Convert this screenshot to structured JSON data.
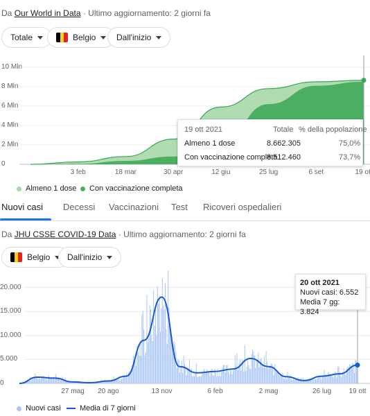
{
  "vaccines": {
    "source_prefix": "Da",
    "source_link": "Our World in Data",
    "updated": "· Ultimo aggiornamento: 2 giorni fa",
    "filters": {
      "metric": "Totale",
      "country": "Belgio",
      "range": "Dall'inizio"
    },
    "flag_colors": [
      "#000000",
      "#f7d117",
      "#e2231a"
    ],
    "colors": {
      "first_dose": "#a8d8a8",
      "full": "#4cae62"
    },
    "tooltip": {
      "date": "19 ott 2021",
      "col_total": "Totale",
      "col_pct": "% della popolazione",
      "rows": [
        {
          "label": "Almeno 1 dose",
          "total": "8.662.305",
          "pct": "75,0%"
        },
        {
          "label": "Con vaccinazione completa",
          "total": "8.512.460",
          "pct": "73,7%"
        }
      ]
    },
    "legend": [
      "Almeno 1 dose",
      "Con vaccinazione completa"
    ],
    "chart_data": {
      "type": "area",
      "ylim": [
        0,
        10000000
      ],
      "y_ticks": [
        "10 Mln",
        "8 Mln",
        "6 Mln",
        "4 Mln",
        "2 Mln",
        "0"
      ],
      "x_ticks": [
        "3 feb",
        "18 mar",
        "30 apr",
        "12 giu",
        "25 lug",
        "6 set",
        "19 ott"
      ],
      "x": [
        "28 dic",
        "3 feb",
        "18 mar",
        "30 apr",
        "12 giu",
        "25 lug",
        "6 set",
        "19 ott"
      ],
      "series": [
        {
          "name": "Almeno 1 dose",
          "values": [
            0,
            250000,
            800000,
            2600000,
            5900000,
            7800000,
            8500000,
            8662305
          ]
        },
        {
          "name": "Con vaccinazione completa",
          "values": [
            0,
            50000,
            350000,
            800000,
            2300000,
            6200000,
            8100000,
            8512460
          ]
        }
      ]
    }
  },
  "tabs": [
    "Nuovi casi",
    "Decessi",
    "Vaccinazioni",
    "Test",
    "Ricoveri ospedalieri"
  ],
  "cases": {
    "source_prefix": "Da",
    "source_link": "JHU CSSE COVID-19 Data",
    "updated": "· Ultimo aggiornamento: 2 giorni fa",
    "filters": {
      "country": "Belgio",
      "range": "Dall'inizio"
    },
    "colors": {
      "bars": "#a9c6f5",
      "avg": "#1558d6"
    },
    "tooltip": {
      "date": "20 ott 2021",
      "new": "Nuovi casi: 6.552",
      "avg": "Media 7 gg: 3.824"
    },
    "legend": [
      "Nuovi casi",
      "Media di 7 giorni"
    ],
    "chart_data": {
      "type": "line",
      "ylim": [
        0,
        25000
      ],
      "y_ticks": [
        "20.000",
        "15.000",
        "10.000",
        "5.000",
        "0"
      ],
      "x_ticks": [
        "27 mag",
        "20 ago",
        "13 nov",
        "6 feb",
        "2 mag",
        "26 lug",
        "19 ott"
      ],
      "x": [
        "1 mar 2020",
        "1 apr 2020",
        "1 mag 2020",
        "27 mag 2020",
        "1 lug 2020",
        "20 ago 2020",
        "1 ott 2020",
        "25 ott 2020",
        "13 nov 2020",
        "1 dic 2020",
        "1 gen 2021",
        "6 feb 2021",
        "1 mar 2021",
        "30 mar 2021",
        "2 mag 2021",
        "1 giu 2021",
        "1 lug 2021",
        "26 lug 2021",
        "1 set 2021",
        "19 ott 2021"
      ],
      "series": [
        {
          "name": "Media di 7 giorni",
          "values": [
            0,
            1300,
            1100,
            300,
            150,
            500,
            1500,
            9000,
            18000,
            3500,
            2200,
            2500,
            3000,
            5200,
            3500,
            1400,
            600,
            1500,
            2000,
            3824
          ]
        }
      ]
    }
  }
}
